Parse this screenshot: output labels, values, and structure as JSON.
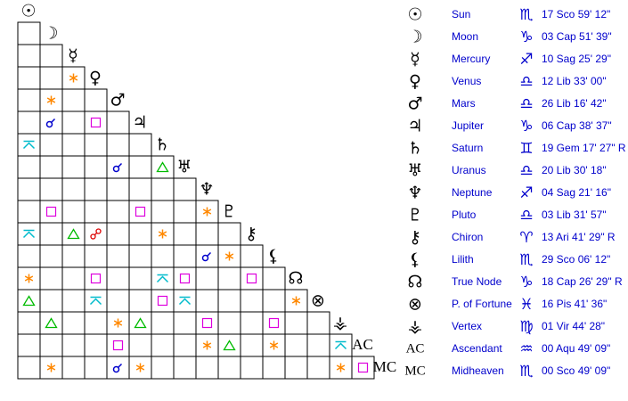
{
  "planets": [
    {
      "name": "Sun",
      "glyph": "☉",
      "sign": "♏",
      "position": "17 Sco 59' 12\""
    },
    {
      "name": "Moon",
      "glyph": "☽",
      "sign": "♑",
      "position": "03 Cap 51' 39\""
    },
    {
      "name": "Mercury",
      "glyph": "☿",
      "sign": "♐",
      "position": "10 Sag 25' 29\""
    },
    {
      "name": "Venus",
      "glyph": "♀",
      "sign": "♎",
      "position": "12 Lib 33' 00\""
    },
    {
      "name": "Mars",
      "glyph": "♂",
      "sign": "♎",
      "position": "26 Lib 16' 42\""
    },
    {
      "name": "Jupiter",
      "glyph": "♃",
      "sign": "♑",
      "position": "06 Cap 38' 37\""
    },
    {
      "name": "Saturn",
      "glyph": "♄",
      "sign": "♊",
      "position": "19 Gem 17' 27\" R"
    },
    {
      "name": "Uranus",
      "glyph": "♅",
      "sign": "♎",
      "position": "20 Lib 30' 18\""
    },
    {
      "name": "Neptune",
      "glyph": "♆",
      "sign": "♐",
      "position": "04 Sag 21' 16\""
    },
    {
      "name": "Pluto",
      "glyph": "♇",
      "sign": "♎",
      "position": "03 Lib 31' 57\""
    },
    {
      "name": "Chiron",
      "glyph": "⚷",
      "sign": "♈",
      "position": "13 Ari 41' 29\" R"
    },
    {
      "name": "Lilith",
      "glyph": "⚸",
      "sign": "♏",
      "position": "29 Sco 06' 12\""
    },
    {
      "name": "True Node",
      "glyph": "☊",
      "sign": "♑",
      "position": "18 Cap 26' 29\" R"
    },
    {
      "name": "P. of Fortune",
      "glyph": "⊗",
      "sign": "♓",
      "position": "16 Pis 41' 36\""
    },
    {
      "name": "Vertex",
      "glyph": "⚶",
      "sign": "♍",
      "position": "01 Vir 44' 28\""
    },
    {
      "name": "Ascendant",
      "glyph": "AC",
      "sign": "♒",
      "position": "00 Aqu 49' 09\""
    },
    {
      "name": "Midheaven",
      "glyph": "MC",
      "sign": "♏",
      "position": "00 Sco 49' 09\""
    }
  ],
  "aspect_colors": {
    "conjunction": "#0000cc",
    "sextile": "#ff8800",
    "square": "#dd00dd",
    "trine": "#00bb00",
    "opposition": "#dd0000",
    "quincunx": "#00bbcc"
  },
  "aspects": [
    {
      "between": [
        3,
        2
      ],
      "type": "sextile"
    },
    {
      "between": [
        4,
        1
      ],
      "type": "sextile"
    },
    {
      "between": [
        5,
        1
      ],
      "type": "conjunction"
    },
    {
      "between": [
        5,
        3
      ],
      "type": "square"
    },
    {
      "between": [
        6,
        0
      ],
      "type": "quincunx"
    },
    {
      "between": [
        7,
        4
      ],
      "type": "conjunction"
    },
    {
      "between": [
        7,
        6
      ],
      "type": "trine"
    },
    {
      "between": [
        9,
        1
      ],
      "type": "square"
    },
    {
      "between": [
        9,
        5
      ],
      "type": "square"
    },
    {
      "between": [
        9,
        8
      ],
      "type": "sextile"
    },
    {
      "between": [
        10,
        0
      ],
      "type": "quincunx"
    },
    {
      "between": [
        10,
        2
      ],
      "type": "trine"
    },
    {
      "between": [
        10,
        3
      ],
      "type": "opposition"
    },
    {
      "between": [
        10,
        6
      ],
      "type": "sextile"
    },
    {
      "between": [
        11,
        8
      ],
      "type": "conjunction"
    },
    {
      "between": [
        11,
        9
      ],
      "type": "sextile"
    },
    {
      "between": [
        12,
        0
      ],
      "type": "sextile"
    },
    {
      "between": [
        12,
        3
      ],
      "type": "square"
    },
    {
      "between": [
        12,
        6
      ],
      "type": "quincunx"
    },
    {
      "between": [
        12,
        7
      ],
      "type": "square"
    },
    {
      "between": [
        12,
        10
      ],
      "type": "square"
    },
    {
      "between": [
        13,
        0
      ],
      "type": "trine"
    },
    {
      "between": [
        13,
        3
      ],
      "type": "quincunx"
    },
    {
      "between": [
        13,
        6
      ],
      "type": "square"
    },
    {
      "between": [
        13,
        7
      ],
      "type": "quincunx"
    },
    {
      "between": [
        13,
        12
      ],
      "type": "sextile"
    },
    {
      "between": [
        14,
        1
      ],
      "type": "trine"
    },
    {
      "between": [
        14,
        4
      ],
      "type": "sextile"
    },
    {
      "between": [
        14,
        5
      ],
      "type": "trine"
    },
    {
      "between": [
        14,
        8
      ],
      "type": "square"
    },
    {
      "between": [
        14,
        11
      ],
      "type": "square"
    },
    {
      "between": [
        15,
        4
      ],
      "type": "square"
    },
    {
      "between": [
        15,
        8
      ],
      "type": "sextile"
    },
    {
      "between": [
        15,
        9
      ],
      "type": "trine"
    },
    {
      "between": [
        15,
        11
      ],
      "type": "sextile"
    },
    {
      "between": [
        15,
        14
      ],
      "type": "quincunx"
    },
    {
      "between": [
        16,
        1
      ],
      "type": "sextile"
    },
    {
      "between": [
        16,
        4
      ],
      "type": "conjunction"
    },
    {
      "between": [
        16,
        5
      ],
      "type": "sextile"
    },
    {
      "between": [
        16,
        14
      ],
      "type": "sextile"
    },
    {
      "between": [
        16,
        15
      ],
      "type": "square"
    }
  ]
}
